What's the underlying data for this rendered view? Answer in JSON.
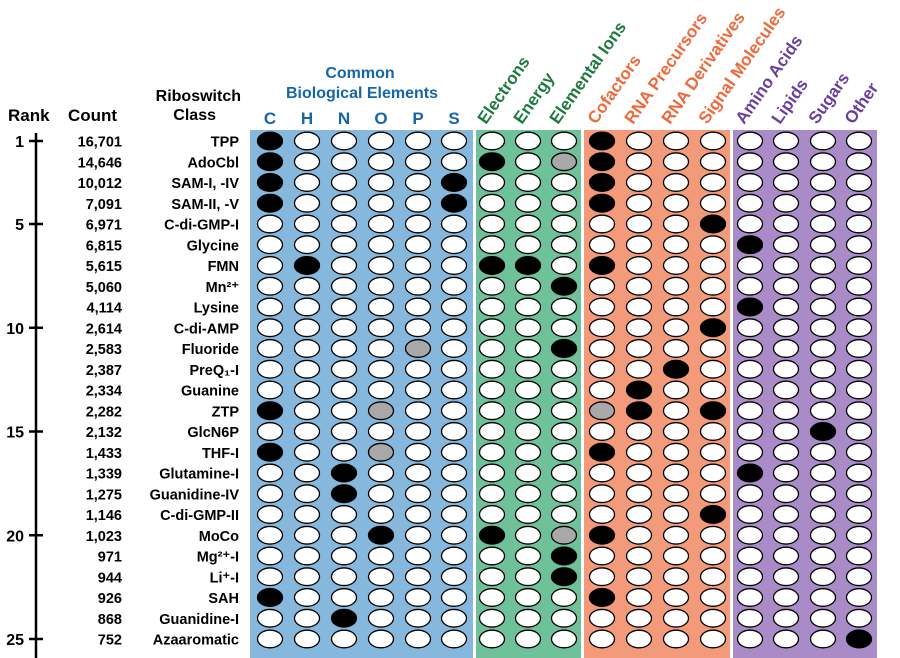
{
  "headers": {
    "rank": "Rank",
    "count": "Count",
    "class_line1": "Riboswitch",
    "class_line2": "Class",
    "common_line1": "Common",
    "common_line2": "Biological Elements"
  },
  "element_columns": [
    "C",
    "H",
    "N",
    "O",
    "P",
    "S"
  ],
  "rotated_columns": [
    {
      "label": "Electrons",
      "group": "green"
    },
    {
      "label": "Energy",
      "group": "green"
    },
    {
      "label": "Elemental Ions",
      "group": "green"
    },
    {
      "label": "Cofactors",
      "group": "orange"
    },
    {
      "label": "RNA Precursors",
      "group": "orange"
    },
    {
      "label": "RNA Derivatives",
      "group": "orange"
    },
    {
      "label": "Signal Molecules",
      "group": "orange"
    },
    {
      "label": "Amino Acids",
      "group": "purple"
    },
    {
      "label": "Lipids",
      "group": "purple"
    },
    {
      "label": "Sugars",
      "group": "purple"
    },
    {
      "label": "Other",
      "group": "purple"
    }
  ],
  "colors": {
    "blue_panel": "#86B8DE",
    "green_panel": "#6FC19A",
    "orange_panel": "#F39A7A",
    "purple_panel": "#A98BC8",
    "blue_text": "#1565A9",
    "green_text": "#1E7A3E",
    "orange_text": "#EE6A3C",
    "purple_text": "#6A3F9C",
    "filled": "#000000",
    "partial": "#A8A8A8",
    "empty": "#FFFFFF"
  },
  "rank_ticks": [
    "1",
    "5",
    "10",
    "15",
    "20",
    "25"
  ],
  "rows": [
    {
      "count": "16,701",
      "name": "TPP",
      "cells": [
        2,
        0,
        0,
        0,
        0,
        0,
        0,
        0,
        0,
        2,
        0,
        0,
        0,
        0,
        0,
        0,
        0
      ]
    },
    {
      "count": "14,646",
      "name": "AdoCbl",
      "cells": [
        2,
        0,
        0,
        0,
        0,
        0,
        2,
        0,
        1,
        2,
        0,
        0,
        0,
        0,
        0,
        0,
        0
      ]
    },
    {
      "count": "10,012",
      "name": "SAM-I, -IV",
      "cells": [
        2,
        0,
        0,
        0,
        0,
        2,
        0,
        0,
        0,
        2,
        0,
        0,
        0,
        0,
        0,
        0,
        0
      ]
    },
    {
      "count": "7,091",
      "name": "SAM-II, -V",
      "cells": [
        2,
        0,
        0,
        0,
        0,
        2,
        0,
        0,
        0,
        2,
        0,
        0,
        0,
        0,
        0,
        0,
        0
      ]
    },
    {
      "count": "6,971",
      "name": "C-di-GMP-I",
      "cells": [
        0,
        0,
        0,
        0,
        0,
        0,
        0,
        0,
        0,
        0,
        0,
        0,
        2,
        0,
        0,
        0,
        0
      ]
    },
    {
      "count": "6,815",
      "name": "Glycine",
      "cells": [
        0,
        0,
        0,
        0,
        0,
        0,
        0,
        0,
        0,
        0,
        0,
        0,
        0,
        2,
        0,
        0,
        0
      ]
    },
    {
      "count": "5,615",
      "name": "FMN",
      "cells": [
        0,
        2,
        0,
        0,
        0,
        0,
        2,
        2,
        0,
        2,
        0,
        0,
        0,
        0,
        0,
        0,
        0
      ]
    },
    {
      "count": "5,060",
      "name": "Mn²⁺",
      "cells": [
        0,
        0,
        0,
        0,
        0,
        0,
        0,
        0,
        2,
        0,
        0,
        0,
        0,
        0,
        0,
        0,
        0
      ]
    },
    {
      "count": "4,114",
      "name": "Lysine",
      "cells": [
        0,
        0,
        0,
        0,
        0,
        0,
        0,
        0,
        0,
        0,
        0,
        0,
        0,
        2,
        0,
        0,
        0
      ]
    },
    {
      "count": "2,614",
      "name": "C-di-AMP",
      "cells": [
        0,
        0,
        0,
        0,
        0,
        0,
        0,
        0,
        0,
        0,
        0,
        0,
        2,
        0,
        0,
        0,
        0
      ]
    },
    {
      "count": "2,583",
      "name": "Fluoride",
      "cells": [
        0,
        0,
        0,
        0,
        1,
        0,
        0,
        0,
        2,
        0,
        0,
        0,
        0,
        0,
        0,
        0,
        0
      ]
    },
    {
      "count": "2,387",
      "name": "PreQ₁-I",
      "cells": [
        0,
        0,
        0,
        0,
        0,
        0,
        0,
        0,
        0,
        0,
        0,
        2,
        0,
        0,
        0,
        0,
        0
      ]
    },
    {
      "count": "2,334",
      "name": "Guanine",
      "cells": [
        0,
        0,
        0,
        0,
        0,
        0,
        0,
        0,
        0,
        0,
        2,
        0,
        0,
        0,
        0,
        0,
        0
      ]
    },
    {
      "count": "2,282",
      "name": "ZTP",
      "cells": [
        2,
        0,
        0,
        1,
        0,
        0,
        0,
        0,
        0,
        1,
        2,
        0,
        2,
        0,
        0,
        0,
        0
      ]
    },
    {
      "count": "2,132",
      "name": "GlcN6P",
      "cells": [
        0,
        0,
        0,
        0,
        0,
        0,
        0,
        0,
        0,
        0,
        0,
        0,
        0,
        0,
        0,
        2,
        0
      ]
    },
    {
      "count": "1,433",
      "name": "THF-I",
      "cells": [
        2,
        0,
        0,
        1,
        0,
        0,
        0,
        0,
        0,
        2,
        0,
        0,
        0,
        0,
        0,
        0,
        0
      ]
    },
    {
      "count": "1,339",
      "name": "Glutamine-I",
      "cells": [
        0,
        0,
        2,
        0,
        0,
        0,
        0,
        0,
        0,
        0,
        0,
        0,
        0,
        2,
        0,
        0,
        0
      ]
    },
    {
      "count": "1,275",
      "name": "Guanidine-IV",
      "cells": [
        0,
        0,
        2,
        0,
        0,
        0,
        0,
        0,
        0,
        0,
        0,
        0,
        0,
        0,
        0,
        0,
        0
      ]
    },
    {
      "count": "1,146",
      "name": "C-di-GMP-II",
      "cells": [
        0,
        0,
        0,
        0,
        0,
        0,
        0,
        0,
        0,
        0,
        0,
        0,
        2,
        0,
        0,
        0,
        0
      ]
    },
    {
      "count": "1,023",
      "name": "MoCo",
      "cells": [
        0,
        0,
        0,
        2,
        0,
        0,
        2,
        0,
        1,
        2,
        0,
        0,
        0,
        0,
        0,
        0,
        0
      ]
    },
    {
      "count": "971",
      "name": "Mg²⁺-I",
      "cells": [
        0,
        0,
        0,
        0,
        0,
        0,
        0,
        0,
        2,
        0,
        0,
        0,
        0,
        0,
        0,
        0,
        0
      ]
    },
    {
      "count": "944",
      "name": "Li⁺-I",
      "cells": [
        0,
        0,
        0,
        0,
        0,
        0,
        0,
        0,
        2,
        0,
        0,
        0,
        0,
        0,
        0,
        0,
        0
      ]
    },
    {
      "count": "926",
      "name": "SAH",
      "cells": [
        2,
        0,
        0,
        0,
        0,
        0,
        0,
        0,
        0,
        2,
        0,
        0,
        0,
        0,
        0,
        0,
        0
      ]
    },
    {
      "count": "868",
      "name": "Guanidine-I",
      "cells": [
        0,
        0,
        2,
        0,
        0,
        0,
        0,
        0,
        0,
        0,
        0,
        0,
        0,
        0,
        0,
        0,
        0
      ]
    },
    {
      "count": "752",
      "name": "Azaaromatic",
      "cells": [
        0,
        0,
        0,
        0,
        0,
        0,
        0,
        0,
        0,
        0,
        0,
        0,
        0,
        0,
        0,
        0,
        2
      ]
    }
  ]
}
